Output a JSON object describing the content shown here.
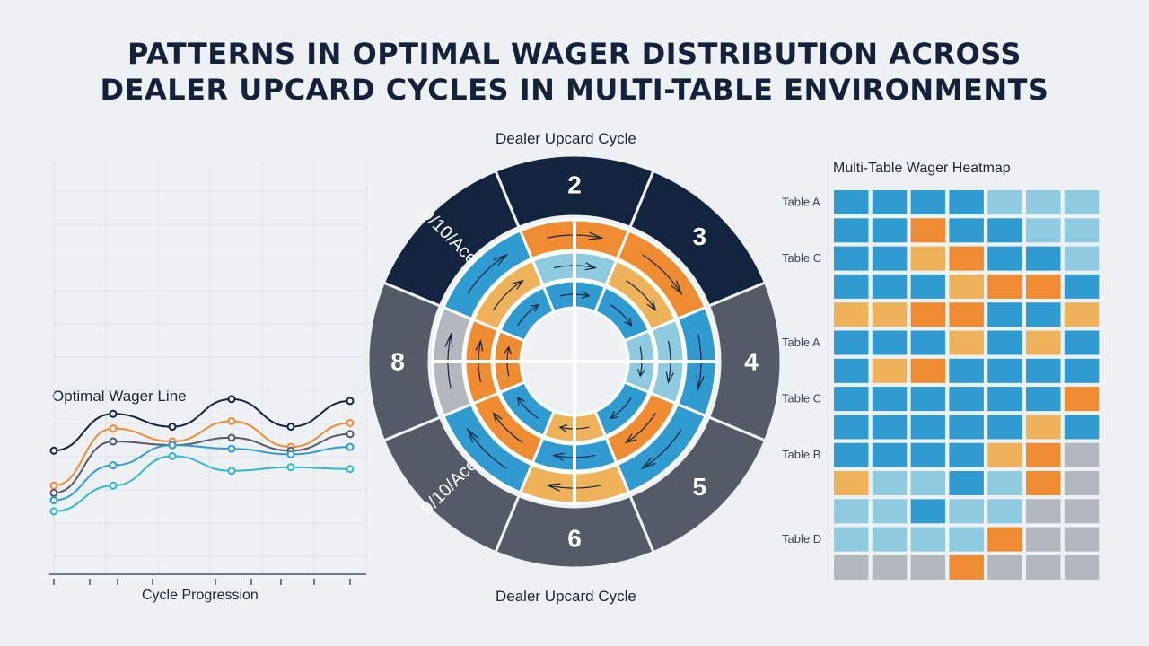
{
  "title_lines": [
    "PATTERNS IN OPTIMAL WAGER DISTRIBUTION ACROSS",
    "DEALER UPCARD CYCLES IN MULTI-TABLE ENVIRONMENTS"
  ],
  "colors": {
    "navy": "#13243f",
    "slate": "#545b66",
    "blue": "#2f9bd0",
    "light_blue": "#8fcbe0",
    "orange": "#ef8c32",
    "gold": "#eeb35a",
    "gray": "#b3b8bf",
    "teal": "#2fb8c8"
  },
  "chart_data": [
    {
      "type": "line",
      "title": "Optimal Wager Line",
      "xlabel": "Cycle Progression",
      "ylabel": "",
      "grid": true,
      "x": [
        0,
        1,
        2,
        3,
        4,
        5
      ],
      "series": [
        {
          "color": "#13243f",
          "values": [
            0.55,
            0.75,
            0.68,
            0.83,
            0.68,
            0.82
          ]
        },
        {
          "color": "#ef8c32",
          "values": [
            0.36,
            0.67,
            0.6,
            0.71,
            0.57,
            0.7
          ]
        },
        {
          "color": "#545b66",
          "values": [
            0.32,
            0.6,
            0.58,
            0.62,
            0.55,
            0.64
          ]
        },
        {
          "color": "#2f9bd0",
          "values": [
            0.28,
            0.47,
            0.58,
            0.56,
            0.53,
            0.57
          ]
        },
        {
          "color": "#2fb8c8",
          "values": [
            0.22,
            0.36,
            0.52,
            0.44,
            0.46,
            0.45
          ]
        }
      ]
    },
    {
      "type": "pie",
      "title": "Dealer Upcard Cycle",
      "bottom_label": "Dealer Upcard Cycle",
      "categories": [
        "2",
        "3",
        "4",
        "5",
        "6",
        "9/10/Ace",
        "8",
        "9/10/Ace"
      ],
      "values": [
        1,
        1,
        1,
        1,
        1,
        1,
        1,
        1
      ],
      "rings": [
        {
          "colors": [
            "orange",
            "orange",
            "blue",
            "blue",
            "gold",
            "blue",
            "gray",
            "blue"
          ]
        },
        {
          "colors": [
            "light_blue",
            "gold",
            "light_blue",
            "orange",
            "blue",
            "orange",
            "orange",
            "gold"
          ]
        },
        {
          "colors": [
            "blue",
            "blue",
            "light_blue",
            "blue",
            "gold",
            "blue",
            "orange",
            "blue"
          ]
        }
      ]
    },
    {
      "type": "heatmap",
      "title": "Multi-Table Wager Heatmap",
      "row_labels": [
        "Table A",
        "",
        "Table C",
        "",
        "",
        "Table A",
        "",
        "Table C",
        "",
        "Table B",
        "",
        "",
        "Table D",
        ""
      ],
      "levels": {
        "0": "gray",
        "1": "light_blue",
        "2": "blue",
        "3": "gold",
        "4": "orange"
      },
      "rows": [
        [
          2,
          2,
          2,
          2,
          1,
          1,
          1
        ],
        [
          2,
          2,
          4,
          2,
          2,
          1,
          1
        ],
        [
          2,
          2,
          3,
          4,
          2,
          2,
          1
        ],
        [
          2,
          2,
          2,
          3,
          4,
          4,
          2
        ],
        [
          3,
          3,
          4,
          4,
          2,
          2,
          3
        ],
        [
          2,
          2,
          2,
          3,
          2,
          3,
          2
        ],
        [
          2,
          3,
          4,
          2,
          2,
          2,
          2
        ],
        [
          2,
          2,
          2,
          2,
          2,
          2,
          4
        ],
        [
          2,
          2,
          2,
          2,
          2,
          3,
          2
        ],
        [
          2,
          2,
          2,
          2,
          3,
          4,
          0
        ],
        [
          3,
          1,
          1,
          2,
          1,
          4,
          0
        ],
        [
          1,
          1,
          2,
          1,
          1,
          0,
          0
        ],
        [
          1,
          1,
          1,
          1,
          4,
          0,
          0
        ],
        [
          0,
          0,
          0,
          4,
          0,
          0,
          0
        ]
      ]
    }
  ]
}
